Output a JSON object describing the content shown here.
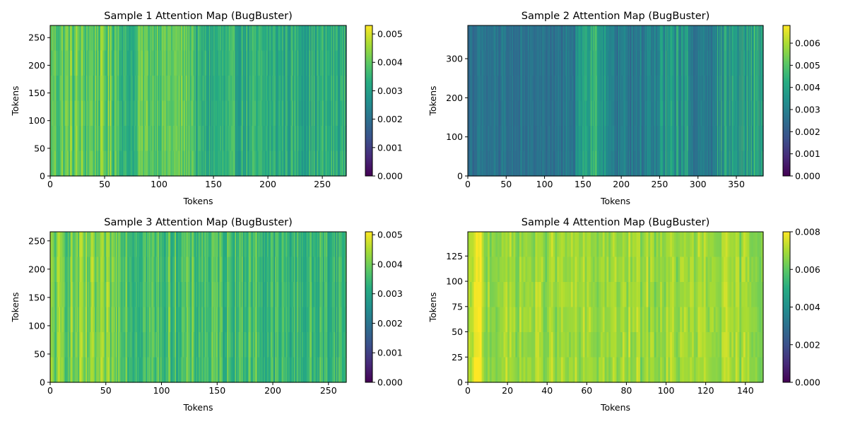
{
  "chart_data": [
    {
      "type": "heatmap",
      "title": "Sample 1 Attention Map (BugBuster)",
      "xlabel": "Tokens",
      "ylabel": "Tokens",
      "n_tokens": 272,
      "xlim": [
        0,
        272
      ],
      "ylim": [
        0,
        272
      ],
      "xticks": [
        0,
        50,
        100,
        150,
        200,
        250
      ],
      "yticks": [
        0,
        50,
        100,
        150,
        200,
        250
      ],
      "colorbar": {
        "min": 0.0,
        "max": 0.0053,
        "ticks": [
          "0.000",
          "0.001",
          "0.002",
          "0.003",
          "0.004",
          "0.005"
        ],
        "tick_values": [
          0,
          0.001,
          0.002,
          0.003,
          0.004,
          0.005
        ]
      },
      "column_profile": [
        {
          "from": 0,
          "to": 65,
          "value": 0.004,
          "jitter": 0.0007
        },
        {
          "from": 65,
          "to": 80,
          "value": 0.0034,
          "jitter": 0.0004
        },
        {
          "from": 80,
          "to": 133,
          "value": 0.004,
          "jitter": 0.0005
        },
        {
          "from": 133,
          "to": 272,
          "value": 0.0033,
          "jitter": 0.0006
        }
      ]
    },
    {
      "type": "heatmap",
      "title": "Sample 2 Attention Map (BugBuster)",
      "xlabel": "Tokens",
      "ylabel": "Tokens",
      "n_tokens": 385,
      "xlim": [
        0,
        385
      ],
      "ylim": [
        0,
        385
      ],
      "xticks": [
        0,
        50,
        100,
        150,
        200,
        250,
        300,
        350
      ],
      "yticks": [
        0,
        100,
        200,
        300
      ],
      "colorbar": {
        "min": 0.0,
        "max": 0.0068,
        "ticks": [
          "0.000",
          "0.001",
          "0.002",
          "0.003",
          "0.004",
          "0.005",
          "0.006"
        ],
        "tick_values": [
          0,
          0.001,
          0.002,
          0.003,
          0.004,
          0.005,
          0.006
        ]
      },
      "column_profile": [
        {
          "from": 0,
          "to": 140,
          "value": 0.0026,
          "jitter": 0.0005
        },
        {
          "from": 140,
          "to": 180,
          "value": 0.004,
          "jitter": 0.001
        },
        {
          "from": 180,
          "to": 250,
          "value": 0.0029,
          "jitter": 0.0006
        },
        {
          "from": 250,
          "to": 290,
          "value": 0.0036,
          "jitter": 0.001
        },
        {
          "from": 290,
          "to": 325,
          "value": 0.0028,
          "jitter": 0.0005
        },
        {
          "from": 325,
          "to": 385,
          "value": 0.0038,
          "jitter": 0.0011
        }
      ]
    },
    {
      "type": "heatmap",
      "title": "Sample 3 Attention Map (BugBuster)",
      "xlabel": "Tokens",
      "ylabel": "Tokens",
      "n_tokens": 266,
      "xlim": [
        0,
        266
      ],
      "ylim": [
        0,
        266
      ],
      "xticks": [
        0,
        50,
        100,
        150,
        200,
        250
      ],
      "yticks": [
        0,
        50,
        100,
        150,
        200,
        250
      ],
      "colorbar": {
        "min": 0.0,
        "max": 0.0051,
        "ticks": [
          "0.000",
          "0.001",
          "0.002",
          "0.003",
          "0.004",
          "0.005"
        ],
        "tick_values": [
          0,
          0.001,
          0.002,
          0.003,
          0.004,
          0.005
        ]
      },
      "column_profile": [
        {
          "from": 0,
          "to": 70,
          "value": 0.004,
          "jitter": 0.0006
        },
        {
          "from": 70,
          "to": 190,
          "value": 0.0036,
          "jitter": 0.0006
        },
        {
          "from": 190,
          "to": 266,
          "value": 0.0034,
          "jitter": 0.0006
        }
      ]
    },
    {
      "type": "heatmap",
      "title": "Sample 4 Attention Map (BugBuster)",
      "xlabel": "Tokens",
      "ylabel": "Tokens",
      "n_tokens": 149,
      "xlim": [
        0,
        149
      ],
      "ylim": [
        0,
        149
      ],
      "xticks": [
        0,
        20,
        40,
        60,
        80,
        100,
        120,
        140
      ],
      "yticks": [
        0,
        25,
        50,
        75,
        100,
        125
      ],
      "colorbar": {
        "min": 0.0,
        "max": 0.008,
        "ticks": [
          "0.000",
          "0.002",
          "0.004",
          "0.006",
          "0.008"
        ],
        "tick_values": [
          0,
          0.002,
          0.004,
          0.006,
          0.008
        ]
      },
      "column_profile": [
        {
          "from": 0,
          "to": 3,
          "value": 0.007,
          "jitter": 0.0002
        },
        {
          "from": 3,
          "to": 7,
          "value": 0.0079,
          "jitter": 0.0001
        },
        {
          "from": 7,
          "to": 149,
          "value": 0.0068,
          "jitter": 0.0005
        }
      ]
    }
  ]
}
